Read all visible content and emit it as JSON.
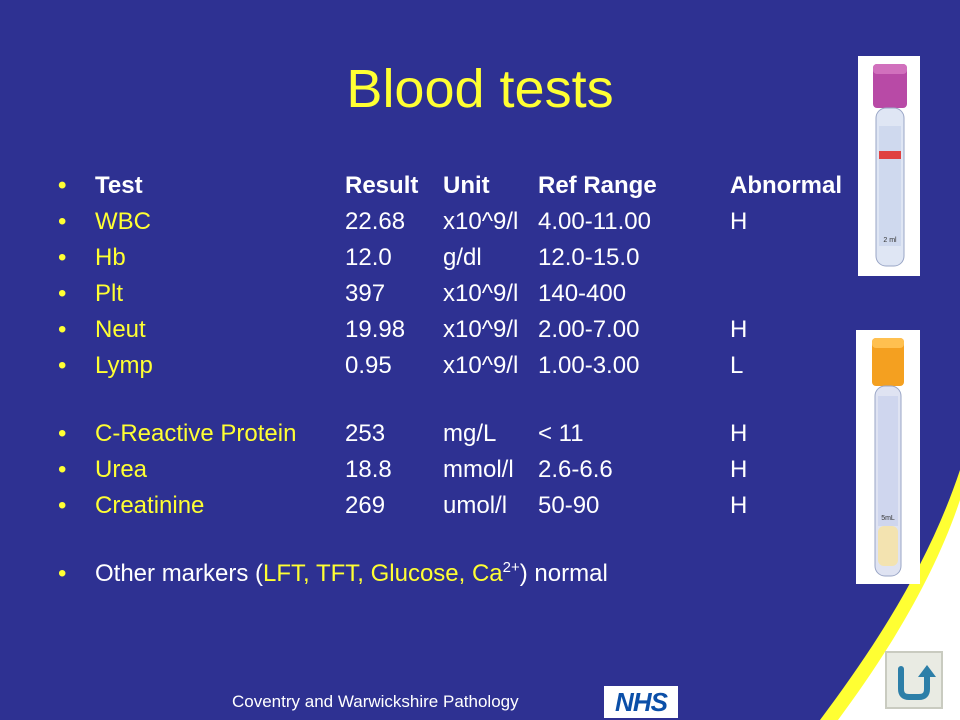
{
  "slide": {
    "title": "Blood tests",
    "bullet": "•",
    "header": {
      "test": "Test",
      "result": "Result",
      "unit": "Unit",
      "ref": "Ref Range",
      "abnormal": "Abnormal"
    },
    "rows": [
      {
        "test": "WBC",
        "result": "22.68",
        "unit": "x10^9/l",
        "ref": "4.00-11.00",
        "abnormal": "H"
      },
      {
        "test": "Hb",
        "result": "12.0",
        "unit": "g/dl",
        "ref": "12.0-15.0",
        "abnormal": ""
      },
      {
        "test": "Plt",
        "result": "397",
        "unit": "x10^9/l",
        "ref": "140-400",
        "abnormal": ""
      },
      {
        "test": "Neut",
        "result": "19.98",
        "unit": "x10^9/l",
        "ref": "2.00-7.00",
        "abnormal": "H"
      },
      {
        "test": "Lymp",
        "result": "0.95",
        "unit": "x10^9/l",
        "ref": "1.00-3.00",
        "abnormal": "L"
      },
      {
        "test": "C-Reactive Protein",
        "result": "253",
        "unit": "mg/L",
        "ref": "< 11",
        "abnormal": "H"
      },
      {
        "test": "Urea",
        "result": "18.8",
        "unit": "mmol/l",
        "ref": "2.6-6.6",
        "abnormal": "H"
      },
      {
        "test": "Creatinine",
        "result": "269",
        "unit": "umol/l",
        "ref": "50-90",
        "abnormal": "H"
      }
    ],
    "note": {
      "prefix": "Other markers (",
      "markers": "LFT, TFT, Glucose, Ca",
      "superscript": "2+",
      "suffix": ") normal"
    },
    "footer": "Coventry and Warwickshire Pathology",
    "nhs_logo": "NHS",
    "tubes": {
      "purple_label": "2 ml",
      "orange_label": "5mL"
    },
    "back_button_icon": "u-turn-arrow-icon"
  },
  "colors": {
    "background": "#2e3192",
    "accent_yellow": "#ffff33",
    "text_white": "#ffffff",
    "nhs_blue": "#0b4fa8"
  }
}
